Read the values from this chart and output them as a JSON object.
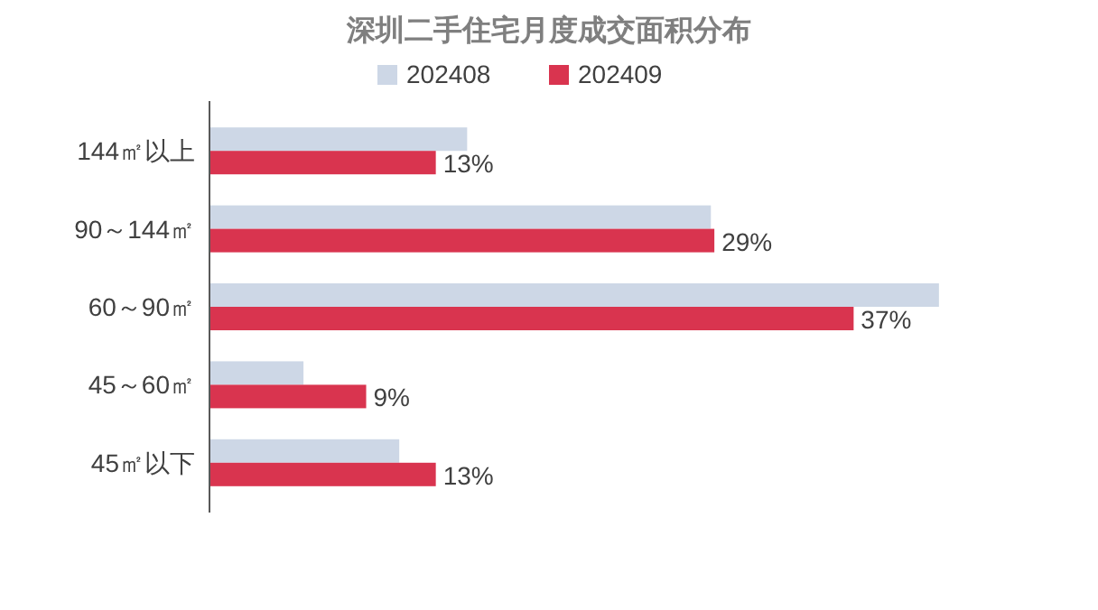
{
  "chart_data": {
    "type": "bar",
    "orientation": "horizontal",
    "title": "深圳二手住宅月度成交面积分布",
    "categories": [
      "144㎡以上",
      "90～144㎡",
      "60～90㎡",
      "45～60㎡",
      "45㎡以下"
    ],
    "series": [
      {
        "name": "202408",
        "color": "#cdd7e6",
        "values": [
          14.8,
          28.8,
          41.9,
          5.4,
          10.9
        ]
      },
      {
        "name": "202409",
        "color": "#d9344f",
        "values": [
          13,
          29,
          37,
          9,
          13
        ],
        "value_labels": [
          "13%",
          "29%",
          "37%",
          "9%",
          "13%"
        ]
      }
    ],
    "tick_labels": "y",
    "legend": "top"
  }
}
